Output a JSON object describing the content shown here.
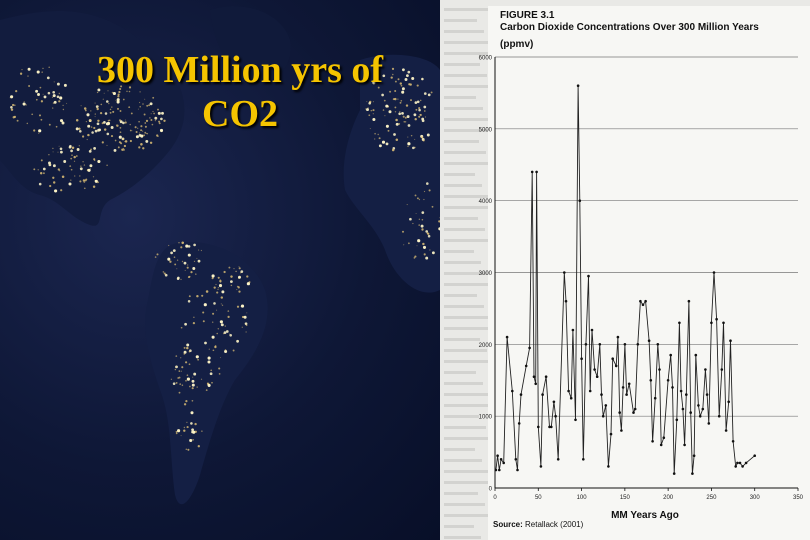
{
  "slide": {
    "title_line1": "300 Million yrs of",
    "title_line2": "CO2"
  },
  "figure": {
    "label": "FIGURE 3.1",
    "title": "Carbon Dioxide Concentrations Over 300 Million Years",
    "units": "(ppmv)",
    "source_label": "Source:",
    "source_text": "Retallack (2001)"
  },
  "chart_data": {
    "type": "line",
    "title": "Carbon Dioxide Concentrations Over 300 Million Years",
    "xlabel": "MM Years Ago",
    "ylabel": "(ppmv)",
    "xlim": [
      0,
      350
    ],
    "ylim": [
      0,
      6000
    ],
    "x_ticks": [
      0,
      50,
      100,
      150,
      200,
      250,
      300,
      350
    ],
    "y_ticks": [
      0,
      1000,
      2000,
      3000,
      4000,
      5000,
      6000
    ],
    "grid": "horizontal",
    "series": [
      {
        "points": [
          [
            1,
            250
          ],
          [
            3,
            450
          ],
          [
            5,
            250
          ],
          [
            7,
            400
          ],
          [
            10,
            350
          ],
          [
            14,
            2100
          ],
          [
            20,
            1350
          ],
          [
            24,
            400
          ],
          [
            26,
            250
          ],
          [
            28,
            900
          ],
          [
            30,
            1300
          ],
          [
            36,
            1700
          ],
          [
            40,
            1950
          ],
          [
            43,
            4400
          ],
          [
            45,
            1550
          ],
          [
            47,
            1450
          ],
          [
            48,
            4400
          ],
          [
            50,
            850
          ],
          [
            53,
            300
          ],
          [
            55,
            1300
          ],
          [
            59,
            1550
          ],
          [
            63,
            850
          ],
          [
            65,
            850
          ],
          [
            68,
            1200
          ],
          [
            70,
            1000
          ],
          [
            73,
            400
          ],
          [
            80,
            3000
          ],
          [
            82,
            2600
          ],
          [
            85,
            1350
          ],
          [
            88,
            1250
          ],
          [
            90,
            2200
          ],
          [
            93,
            950
          ],
          [
            96,
            5600
          ],
          [
            98,
            4000
          ],
          [
            100,
            1800
          ],
          [
            102,
            400
          ],
          [
            105,
            2000
          ],
          [
            108,
            2950
          ],
          [
            110,
            1350
          ],
          [
            112,
            2200
          ],
          [
            115,
            1650
          ],
          [
            118,
            1550
          ],
          [
            121,
            2000
          ],
          [
            123,
            1300
          ],
          [
            125,
            1000
          ],
          [
            128,
            1150
          ],
          [
            131,
            300
          ],
          [
            134,
            750
          ],
          [
            136,
            1800
          ],
          [
            140,
            1700
          ],
          [
            142,
            2100
          ],
          [
            144,
            1050
          ],
          [
            146,
            800
          ],
          [
            148,
            1400
          ],
          [
            150,
            2000
          ],
          [
            152,
            1300
          ],
          [
            155,
            1450
          ],
          [
            160,
            1050
          ],
          [
            162,
            1100
          ],
          [
            165,
            2000
          ],
          [
            168,
            2600
          ],
          [
            171,
            2550
          ],
          [
            174,
            2600
          ],
          [
            178,
            2050
          ],
          [
            180,
            1500
          ],
          [
            182,
            650
          ],
          [
            185,
            1250
          ],
          [
            188,
            2000
          ],
          [
            190,
            1650
          ],
          [
            192,
            600
          ],
          [
            195,
            700
          ],
          [
            200,
            1500
          ],
          [
            203,
            1850
          ],
          [
            205,
            1400
          ],
          [
            207,
            200
          ],
          [
            210,
            950
          ],
          [
            213,
            2300
          ],
          [
            215,
            1350
          ],
          [
            217,
            1100
          ],
          [
            219,
            600
          ],
          [
            221,
            1300
          ],
          [
            224,
            2600
          ],
          [
            226,
            1050
          ],
          [
            228,
            200
          ],
          [
            230,
            450
          ],
          [
            232,
            1850
          ],
          [
            235,
            1150
          ],
          [
            237,
            1000
          ],
          [
            240,
            1100
          ],
          [
            243,
            1650
          ],
          [
            245,
            1300
          ],
          [
            247,
            900
          ],
          [
            250,
            2300
          ],
          [
            253,
            3000
          ],
          [
            256,
            2350
          ],
          [
            259,
            1000
          ],
          [
            262,
            1650
          ],
          [
            264,
            2300
          ],
          [
            267,
            800
          ],
          [
            270,
            1200
          ],
          [
            272,
            2050
          ],
          [
            275,
            650
          ],
          [
            278,
            300
          ],
          [
            280,
            350
          ],
          [
            283,
            350
          ],
          [
            286,
            300
          ],
          [
            290,
            350
          ],
          [
            300,
            450
          ]
        ]
      }
    ]
  }
}
